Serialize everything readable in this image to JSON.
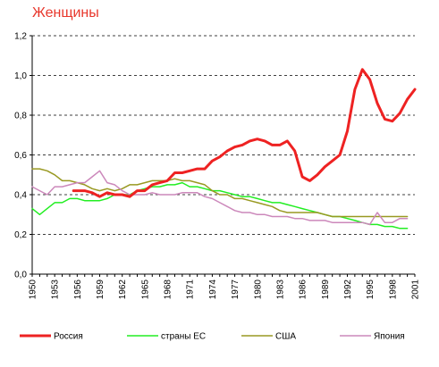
{
  "chart_data": {
    "type": "line",
    "title": "Женщины",
    "xlabel": "",
    "ylabel": "",
    "xlim": [
      1950,
      2001
    ],
    "ylim": [
      0,
      1.2
    ],
    "yticks": [
      "0,0",
      "0,2",
      "0,4",
      "0,6",
      "0,8",
      "1,0",
      "1,2"
    ],
    "yticks_values": [
      0,
      0.2,
      0.4,
      0.6,
      0.8,
      1.0,
      1.2
    ],
    "xticks": [
      "1950",
      "1953",
      "1956",
      "1959",
      "1962",
      "1965",
      "1968",
      "1971",
      "1974",
      "1977",
      "1980",
      "1983",
      "1986",
      "1989",
      "1992",
      "1995",
      "1998",
      "2001"
    ],
    "grid": "horizontal-dashed",
    "legend_position": "bottom",
    "series": [
      {
        "name": "Россия",
        "color": "#ee2222",
        "width": 3,
        "points": [
          [
            1955.5,
            0.42
          ],
          [
            1957,
            0.42
          ],
          [
            1958,
            0.41
          ],
          [
            1959,
            0.39
          ],
          [
            1960,
            0.41
          ],
          [
            1961,
            0.4
          ],
          [
            1962,
            0.4
          ],
          [
            1963,
            0.39
          ],
          [
            1964,
            0.42
          ],
          [
            1965,
            0.42
          ],
          [
            1966,
            0.45
          ],
          [
            1967,
            0.46
          ],
          [
            1968,
            0.47
          ],
          [
            1969,
            0.51
          ],
          [
            1970,
            0.51
          ],
          [
            1971,
            0.52
          ],
          [
            1972,
            0.53
          ],
          [
            1973,
            0.53
          ],
          [
            1974,
            0.57
          ],
          [
            1975,
            0.59
          ],
          [
            1976,
            0.62
          ],
          [
            1977,
            0.64
          ],
          [
            1978,
            0.65
          ],
          [
            1979,
            0.67
          ],
          [
            1980,
            0.68
          ],
          [
            1981,
            0.67
          ],
          [
            1982,
            0.65
          ],
          [
            1983,
            0.65
          ],
          [
            1984,
            0.67
          ],
          [
            1985,
            0.62
          ],
          [
            1986,
            0.49
          ],
          [
            1987,
            0.47
          ],
          [
            1988,
            0.5
          ],
          [
            1989,
            0.54
          ],
          [
            1990,
            0.57
          ],
          [
            1991,
            0.6
          ],
          [
            1992,
            0.72
          ],
          [
            1993,
            0.93
          ],
          [
            1994,
            1.03
          ],
          [
            1995,
            0.98
          ],
          [
            1996,
            0.86
          ],
          [
            1997,
            0.78
          ],
          [
            1998,
            0.77
          ],
          [
            1999,
            0.81
          ],
          [
            2000,
            0.88
          ],
          [
            2001,
            0.93
          ]
        ]
      },
      {
        "name": "страны ЕС",
        "color": "#22ee22",
        "width": 1.5,
        "points": [
          [
            1950,
            0.33
          ],
          [
            1951,
            0.3
          ],
          [
            1952,
            0.33
          ],
          [
            1953,
            0.36
          ],
          [
            1954,
            0.36
          ],
          [
            1955,
            0.38
          ],
          [
            1956,
            0.38
          ],
          [
            1957,
            0.37
          ],
          [
            1958,
            0.37
          ],
          [
            1959,
            0.37
          ],
          [
            1960,
            0.38
          ],
          [
            1961,
            0.4
          ],
          [
            1962,
            0.4
          ],
          [
            1963,
            0.4
          ],
          [
            1964,
            0.42
          ],
          [
            1965,
            0.43
          ],
          [
            1966,
            0.44
          ],
          [
            1967,
            0.44
          ],
          [
            1968,
            0.45
          ],
          [
            1969,
            0.45
          ],
          [
            1970,
            0.46
          ],
          [
            1971,
            0.44
          ],
          [
            1972,
            0.44
          ],
          [
            1973,
            0.43
          ],
          [
            1974,
            0.42
          ],
          [
            1975,
            0.42
          ],
          [
            1976,
            0.41
          ],
          [
            1977,
            0.4
          ],
          [
            1978,
            0.39
          ],
          [
            1979,
            0.39
          ],
          [
            1980,
            0.38
          ],
          [
            1981,
            0.37
          ],
          [
            1982,
            0.36
          ],
          [
            1983,
            0.36
          ],
          [
            1984,
            0.35
          ],
          [
            1985,
            0.34
          ],
          [
            1986,
            0.33
          ],
          [
            1987,
            0.32
          ],
          [
            1988,
            0.31
          ],
          [
            1989,
            0.3
          ],
          [
            1990,
            0.29
          ],
          [
            1991,
            0.29
          ],
          [
            1992,
            0.28
          ],
          [
            1993,
            0.27
          ],
          [
            1994,
            0.26
          ],
          [
            1995,
            0.25
          ],
          [
            1996,
            0.25
          ],
          [
            1997,
            0.24
          ],
          [
            1998,
            0.24
          ],
          [
            1999,
            0.23
          ],
          [
            2000,
            0.23
          ]
        ]
      },
      {
        "name": "США",
        "color": "#999922",
        "width": 1.5,
        "points": [
          [
            1950,
            0.53
          ],
          [
            1951,
            0.53
          ],
          [
            1952,
            0.52
          ],
          [
            1953,
            0.5
          ],
          [
            1954,
            0.47
          ],
          [
            1955,
            0.47
          ],
          [
            1956,
            0.46
          ],
          [
            1957,
            0.45
          ],
          [
            1958,
            0.43
          ],
          [
            1959,
            0.42
          ],
          [
            1960,
            0.43
          ],
          [
            1961,
            0.42
          ],
          [
            1962,
            0.43
          ],
          [
            1963,
            0.45
          ],
          [
            1964,
            0.45
          ],
          [
            1965,
            0.46
          ],
          [
            1966,
            0.47
          ],
          [
            1967,
            0.47
          ],
          [
            1968,
            0.47
          ],
          [
            1969,
            0.48
          ],
          [
            1970,
            0.47
          ],
          [
            1971,
            0.47
          ],
          [
            1972,
            0.46
          ],
          [
            1973,
            0.45
          ],
          [
            1974,
            0.42
          ],
          [
            1975,
            0.4
          ],
          [
            1976,
            0.4
          ],
          [
            1977,
            0.38
          ],
          [
            1978,
            0.38
          ],
          [
            1979,
            0.37
          ],
          [
            1980,
            0.36
          ],
          [
            1981,
            0.35
          ],
          [
            1982,
            0.34
          ],
          [
            1983,
            0.32
          ],
          [
            1984,
            0.31
          ],
          [
            1985,
            0.31
          ],
          [
            1986,
            0.31
          ],
          [
            1987,
            0.31
          ],
          [
            1988,
            0.31
          ],
          [
            1989,
            0.3
          ],
          [
            1990,
            0.29
          ],
          [
            1991,
            0.29
          ],
          [
            1992,
            0.29
          ],
          [
            1993,
            0.29
          ],
          [
            1994,
            0.29
          ],
          [
            1995,
            0.29
          ],
          [
            1996,
            0.29
          ],
          [
            1997,
            0.29
          ],
          [
            1998,
            0.29
          ],
          [
            1999,
            0.29
          ],
          [
            2000,
            0.29
          ]
        ]
      },
      {
        "name": "Япония",
        "color": "#cc88bb",
        "width": 1.5,
        "points": [
          [
            1950,
            0.44
          ],
          [
            1951,
            0.42
          ],
          [
            1952,
            0.4
          ],
          [
            1953,
            0.44
          ],
          [
            1954,
            0.44
          ],
          [
            1955,
            0.45
          ],
          [
            1956,
            0.46
          ],
          [
            1957,
            0.46
          ],
          [
            1958,
            0.49
          ],
          [
            1959,
            0.52
          ],
          [
            1960,
            0.46
          ],
          [
            1961,
            0.45
          ],
          [
            1962,
            0.42
          ],
          [
            1963,
            0.4
          ],
          [
            1964,
            0.4
          ],
          [
            1965,
            0.4
          ],
          [
            1966,
            0.41
          ],
          [
            1967,
            0.4
          ],
          [
            1968,
            0.4
          ],
          [
            1969,
            0.4
          ],
          [
            1970,
            0.41
          ],
          [
            1971,
            0.41
          ],
          [
            1972,
            0.41
          ],
          [
            1973,
            0.39
          ],
          [
            1974,
            0.38
          ],
          [
            1975,
            0.36
          ],
          [
            1976,
            0.34
          ],
          [
            1977,
            0.32
          ],
          [
            1978,
            0.31
          ],
          [
            1979,
            0.31
          ],
          [
            1980,
            0.3
          ],
          [
            1981,
            0.3
          ],
          [
            1982,
            0.29
          ],
          [
            1983,
            0.29
          ],
          [
            1984,
            0.29
          ],
          [
            1985,
            0.28
          ],
          [
            1986,
            0.28
          ],
          [
            1987,
            0.27
          ],
          [
            1988,
            0.27
          ],
          [
            1989,
            0.27
          ],
          [
            1990,
            0.26
          ],
          [
            1991,
            0.26
          ],
          [
            1992,
            0.26
          ],
          [
            1993,
            0.26
          ],
          [
            1994,
            0.26
          ],
          [
            1995,
            0.25
          ],
          [
            1996,
            0.31
          ],
          [
            1997,
            0.26
          ],
          [
            1998,
            0.26
          ],
          [
            1999,
            0.28
          ],
          [
            2000,
            0.28
          ]
        ]
      }
    ]
  }
}
